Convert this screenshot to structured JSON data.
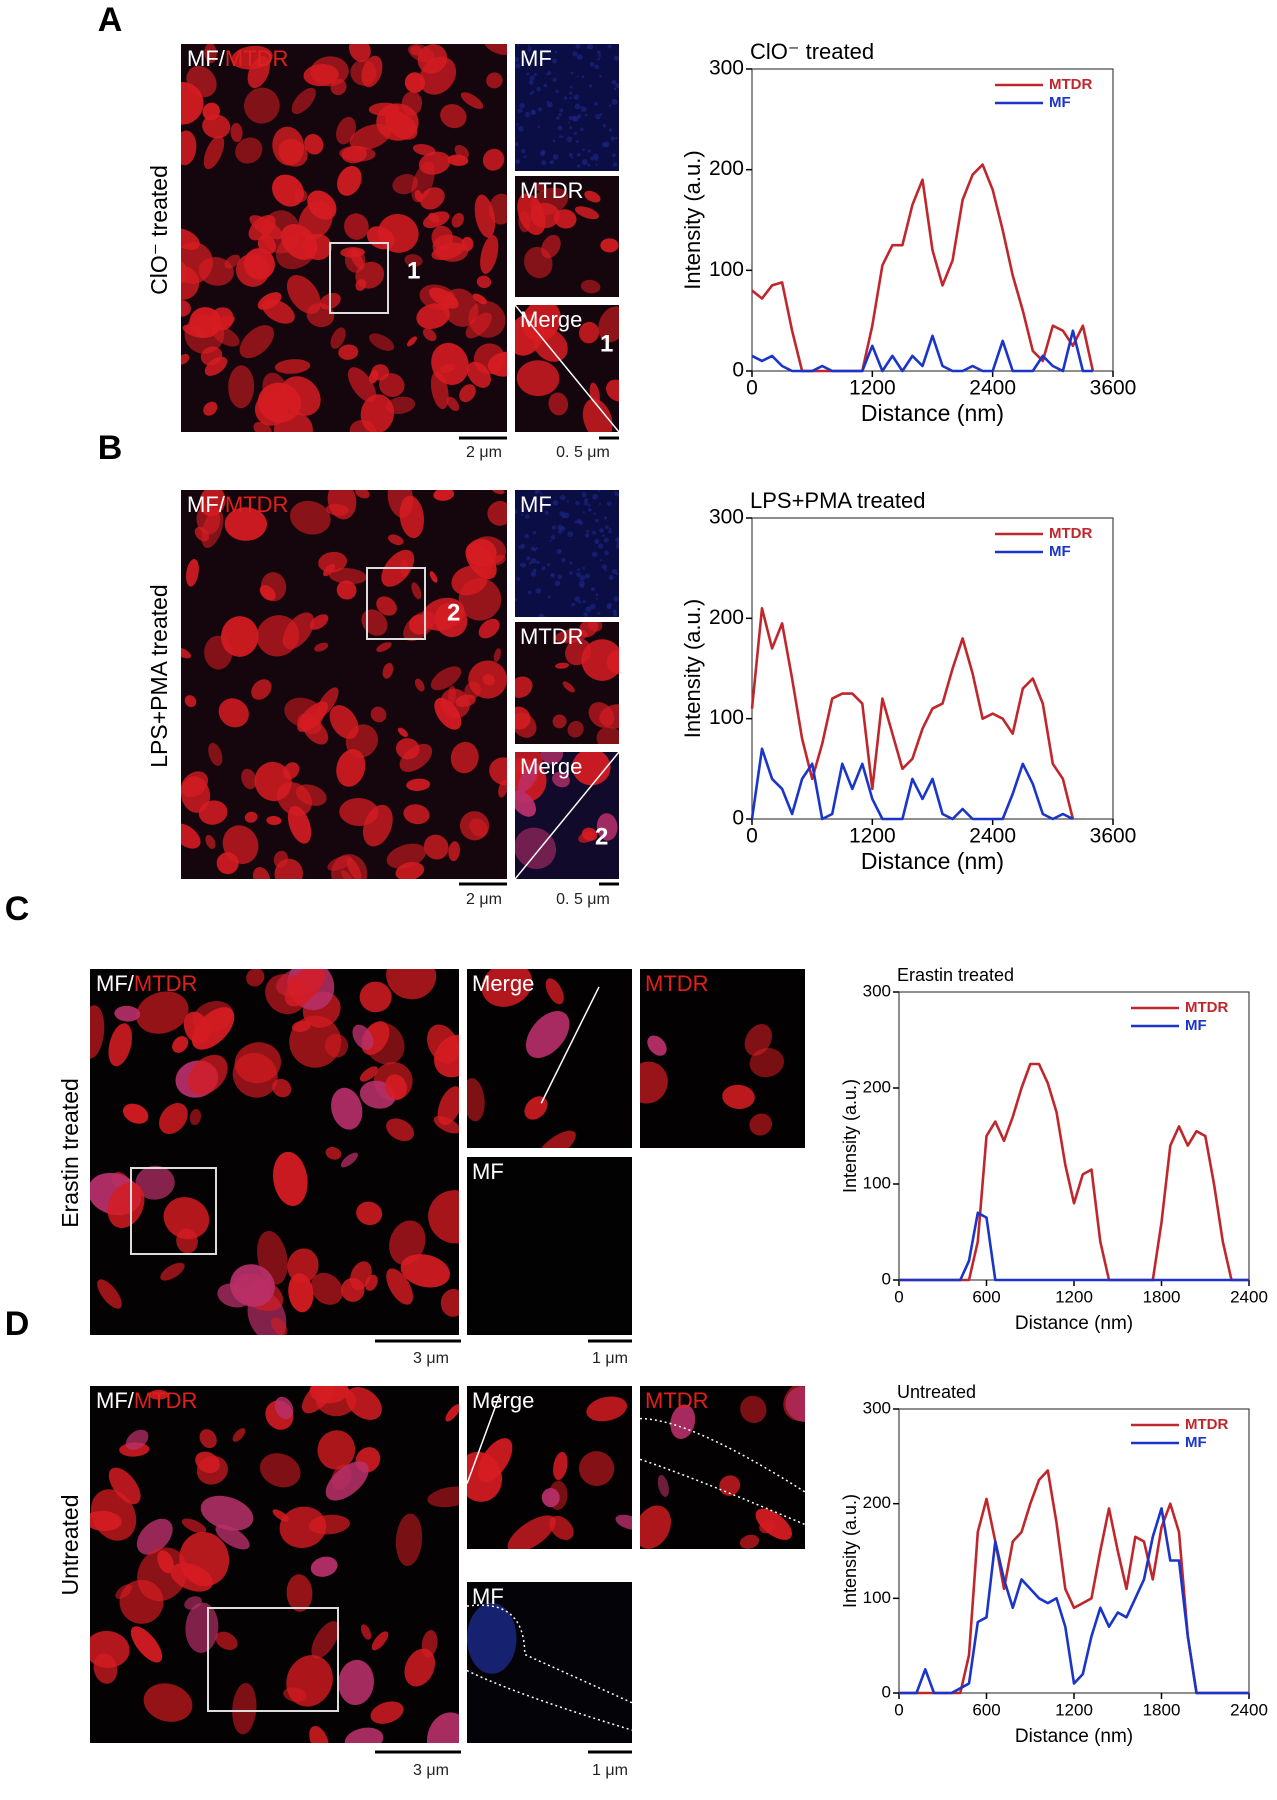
{
  "panels": [
    {
      "letter": "A",
      "condition": "ClO⁻ treated",
      "main_label": [
        "MF/",
        "MTDR"
      ],
      "roi": "1",
      "insets": [
        {
          "label": "MF"
        },
        {
          "label": "MTDR",
          "label_color": "#ffffff"
        },
        {
          "label": "Merge",
          "roi": "1"
        }
      ],
      "scale_bars": [
        "2 μm",
        "0. 5 μm"
      ]
    },
    {
      "letter": "B",
      "condition": "LPS+PMA treated",
      "main_label": [
        "MF/",
        "MTDR"
      ],
      "roi": "2",
      "insets": [
        {
          "label": "MF"
        },
        {
          "label": "MTDR",
          "label_color": "#ffffff"
        },
        {
          "label": "Merge",
          "roi": "2"
        }
      ],
      "scale_bars": [
        "2 μm",
        "0. 5 μm"
      ]
    },
    {
      "letter": "C",
      "condition": "Erastin treated",
      "main_label": [
        "MF/",
        "MTDR"
      ],
      "insets": [
        {
          "label": "Merge"
        },
        {
          "label": "MTDR",
          "label_color": "#e0201c"
        },
        {
          "label": "MF"
        }
      ],
      "scale_bars": [
        "3 μm",
        "1 μm"
      ]
    },
    {
      "letter": "D",
      "condition": "Untreated",
      "main_label": [
        "MF/",
        "MTDR"
      ],
      "insets": [
        {
          "label": "Merge"
        },
        {
          "label": "MTDR",
          "label_color": "#e0201c"
        },
        {
          "label": "MF"
        }
      ],
      "scale_bars": [
        "3 μm",
        "1 μm"
      ]
    }
  ],
  "chart_data": [
    {
      "type": "line",
      "title": "ClO⁻ treated",
      "x_label": "Distance (nm)",
      "y_label": "Intensity (a.u.)",
      "xlim": [
        0,
        3600
      ],
      "ylim": [
        0,
        300
      ],
      "xticks": [
        0,
        1200,
        2400,
        3600
      ],
      "yticks": [
        0,
        100,
        200,
        300
      ],
      "x": [
        0,
        100,
        200,
        300,
        400,
        500,
        600,
        700,
        800,
        900,
        1000,
        1100,
        1200,
        1300,
        1400,
        1500,
        1600,
        1700,
        1800,
        1900,
        2000,
        2100,
        2200,
        2300,
        2400,
        2500,
        2600,
        2700,
        2800,
        2900,
        3000,
        3100,
        3200,
        3300,
        3400,
        3500,
        3600
      ],
      "series": [
        {
          "name": "MTDR",
          "color": "#c0272d",
          "values": [
            80,
            72,
            85,
            88,
            40,
            0,
            0,
            0,
            0,
            0,
            0,
            0,
            45,
            105,
            125,
            125,
            165,
            190,
            120,
            85,
            110,
            170,
            195,
            205,
            180,
            140,
            95,
            60,
            20,
            10,
            45,
            40,
            25,
            45,
            0,
            null,
            null
          ]
        },
        {
          "name": "MF",
          "color": "#1a35c8",
          "values": [
            15,
            10,
            15,
            5,
            0,
            0,
            0,
            5,
            0,
            0,
            0,
            0,
            25,
            0,
            15,
            0,
            15,
            5,
            35,
            5,
            0,
            0,
            5,
            0,
            0,
            30,
            0,
            0,
            0,
            15,
            5,
            0,
            40,
            0,
            0,
            null,
            null
          ]
        }
      ]
    },
    {
      "type": "line",
      "title": "LPS+PMA treated",
      "x_label": "Distance (nm)",
      "y_label": "Intensity (a.u.)",
      "xlim": [
        0,
        3600
      ],
      "ylim": [
        0,
        300
      ],
      "xticks": [
        0,
        1200,
        2400,
        3600
      ],
      "yticks": [
        0,
        100,
        200,
        300
      ],
      "x": [
        0,
        100,
        200,
        300,
        400,
        500,
        600,
        700,
        800,
        900,
        1000,
        1100,
        1200,
        1300,
        1400,
        1500,
        1600,
        1700,
        1800,
        1900,
        2000,
        2100,
        2200,
        2300,
        2400,
        2500,
        2600,
        2700,
        2800,
        2900,
        3000,
        3100,
        3200,
        3300,
        3400,
        3500,
        3600
      ],
      "series": [
        {
          "name": "MTDR",
          "color": "#c0272d",
          "values": [
            110,
            210,
            170,
            195,
            140,
            80,
            40,
            75,
            120,
            125,
            125,
            115,
            30,
            120,
            85,
            50,
            60,
            90,
            110,
            115,
            150,
            180,
            145,
            100,
            105,
            100,
            85,
            130,
            140,
            115,
            55,
            40,
            0,
            null,
            null,
            null,
            null
          ]
        },
        {
          "name": "MF",
          "color": "#1a35c8",
          "values": [
            0,
            70,
            40,
            30,
            5,
            40,
            55,
            0,
            5,
            55,
            30,
            55,
            20,
            0,
            0,
            0,
            40,
            20,
            40,
            5,
            0,
            10,
            0,
            0,
            0,
            0,
            25,
            55,
            35,
            5,
            0,
            5,
            0,
            null,
            null,
            null,
            null
          ]
        }
      ]
    },
    {
      "type": "line",
      "title": "Erastin treated",
      "x_label": "Distance (nm)",
      "y_label": "Intensity (a.u.)",
      "xlim": [
        0,
        2400
      ],
      "ylim": [
        0,
        300
      ],
      "xticks": [
        0,
        600,
        1200,
        1800,
        2400
      ],
      "yticks": [
        0,
        100,
        200,
        300
      ],
      "x": [
        0,
        60,
        120,
        180,
        240,
        300,
        360,
        420,
        480,
        540,
        600,
        660,
        720,
        780,
        840,
        900,
        960,
        1020,
        1080,
        1140,
        1200,
        1260,
        1320,
        1380,
        1440,
        1500,
        1560,
        1620,
        1680,
        1740,
        1800,
        1860,
        1920,
        1980,
        2040,
        2100,
        2160,
        2220,
        2280,
        2340,
        2400
      ],
      "series": [
        {
          "name": "MTDR",
          "color": "#c0272d",
          "values": [
            0,
            0,
            0,
            0,
            0,
            0,
            0,
            0,
            0,
            40,
            150,
            165,
            145,
            170,
            200,
            225,
            225,
            205,
            175,
            120,
            80,
            110,
            115,
            40,
            0,
            0,
            0,
            0,
            0,
            0,
            60,
            140,
            160,
            140,
            155,
            150,
            100,
            40,
            0,
            0,
            0
          ]
        },
        {
          "name": "MF",
          "color": "#1a35c8",
          "values": [
            0,
            0,
            0,
            0,
            0,
            0,
            0,
            0,
            20,
            70,
            65,
            0,
            0,
            0,
            0,
            0,
            0,
            0,
            0,
            0,
            0,
            0,
            0,
            0,
            0,
            0,
            0,
            0,
            0,
            0,
            0,
            0,
            0,
            0,
            0,
            0,
            0,
            0,
            0,
            0,
            0
          ]
        }
      ]
    },
    {
      "type": "line",
      "title": "Untreated",
      "x_label": "Distance (nm)",
      "y_label": "Intensity (a.u.)",
      "xlim": [
        0,
        2400
      ],
      "ylim": [
        0,
        300
      ],
      "xticks": [
        0,
        600,
        1200,
        1800,
        2400
      ],
      "yticks": [
        0,
        100,
        200,
        300
      ],
      "x": [
        0,
        60,
        120,
        180,
        240,
        300,
        360,
        420,
        480,
        540,
        600,
        660,
        720,
        780,
        840,
        900,
        960,
        1020,
        1080,
        1140,
        1200,
        1260,
        1320,
        1380,
        1440,
        1500,
        1560,
        1620,
        1680,
        1740,
        1800,
        1860,
        1920,
        1980,
        2040,
        2100,
        2160,
        2220,
        2280,
        2340,
        2400
      ],
      "series": [
        {
          "name": "MTDR",
          "color": "#c0272d",
          "values": [
            0,
            0,
            0,
            0,
            0,
            0,
            0,
            0,
            40,
            170,
            205,
            160,
            110,
            160,
            170,
            200,
            225,
            235,
            180,
            110,
            90,
            95,
            100,
            150,
            195,
            150,
            110,
            165,
            160,
            120,
            175,
            200,
            170,
            60,
            0,
            0,
            0,
            0,
            0,
            0,
            0
          ]
        },
        {
          "name": "MF",
          "color": "#1a35c8",
          "values": [
            0,
            0,
            0,
            25,
            0,
            0,
            0,
            5,
            10,
            75,
            80,
            160,
            120,
            90,
            120,
            110,
            100,
            95,
            100,
            70,
            10,
            20,
            60,
            90,
            70,
            85,
            80,
            100,
            120,
            165,
            195,
            140,
            140,
            60,
            0,
            0,
            0,
            0,
            0,
            0,
            0
          ]
        }
      ]
    }
  ]
}
